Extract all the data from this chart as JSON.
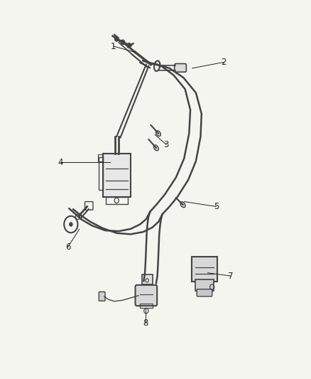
{
  "background_color": "#f5f5f0",
  "line_color": "#444444",
  "line_color_light": "#666666",
  "label_color": "#222222",
  "figsize": [
    4.38,
    5.33
  ],
  "dpi": 100,
  "labels_info": [
    [
      1,
      0.365,
      0.878,
      0.435,
      0.862
    ],
    [
      2,
      0.72,
      0.836,
      0.618,
      0.82
    ],
    [
      3,
      0.535,
      0.618,
      0.498,
      0.645
    ],
    [
      4,
      0.195,
      0.572,
      0.355,
      0.572
    ],
    [
      5,
      0.695,
      0.455,
      0.592,
      0.468
    ],
    [
      6,
      0.218,
      0.348,
      0.255,
      0.395
    ],
    [
      7,
      0.742,
      0.272,
      0.668,
      0.28
    ],
    [
      8,
      0.468,
      0.148,
      0.468,
      0.185
    ]
  ]
}
